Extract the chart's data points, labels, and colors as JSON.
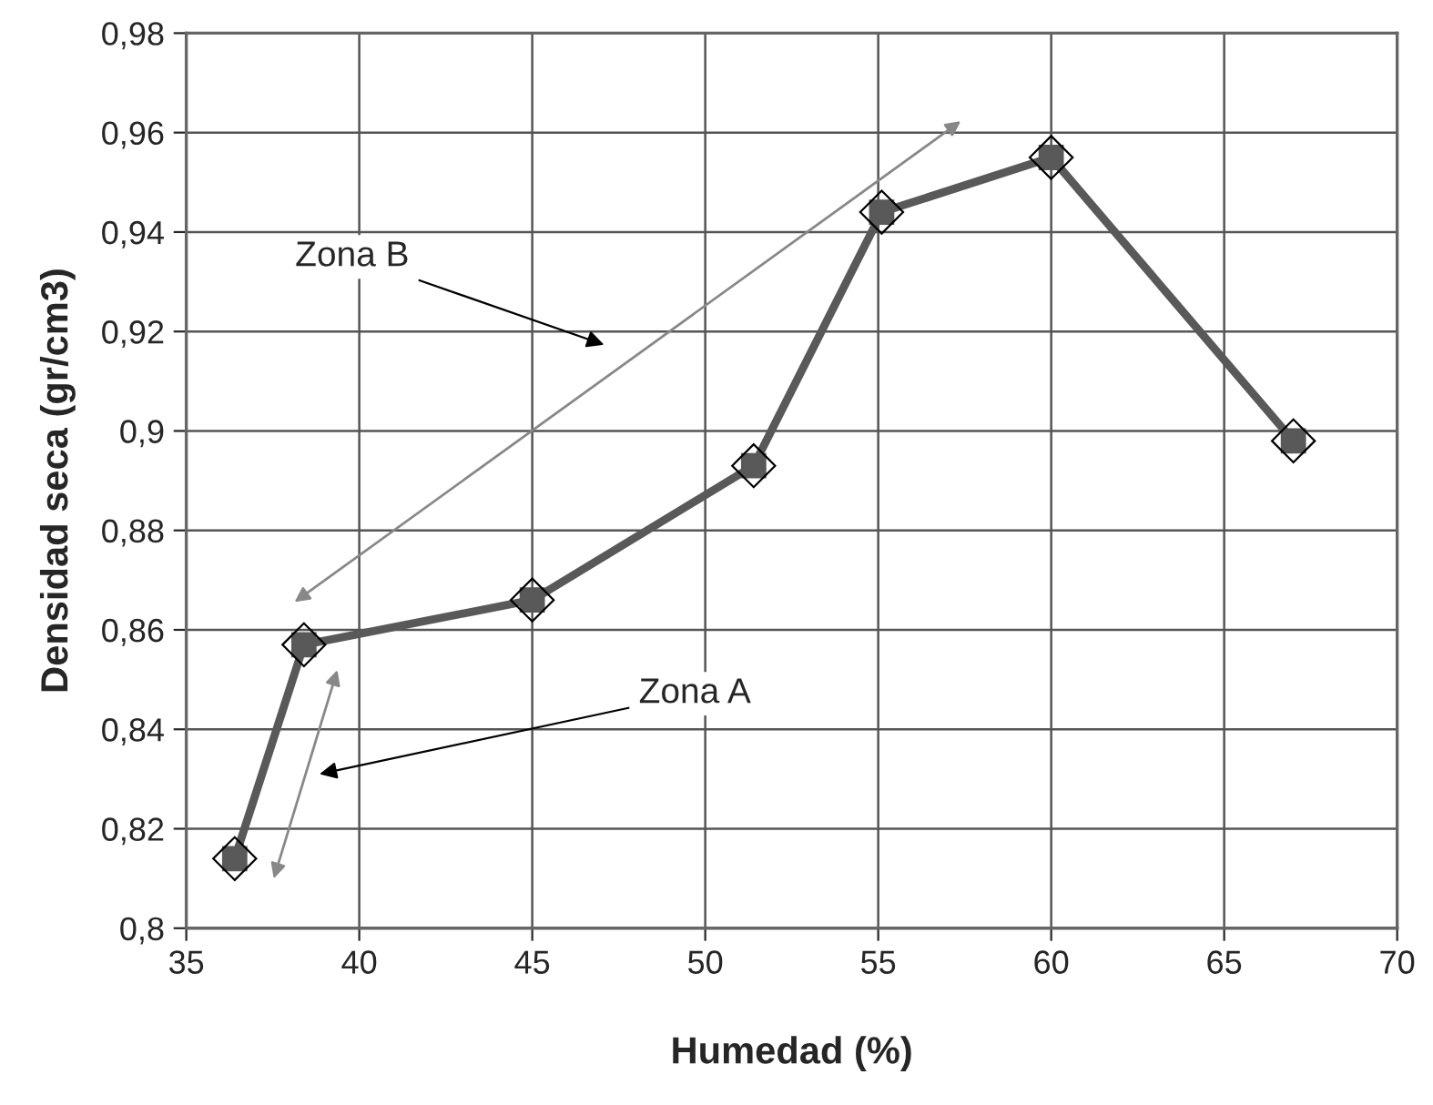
{
  "chart_data": {
    "type": "line",
    "xlabel": "Humedad (%)",
    "ylabel": "Densidad seca (gr/cm3)",
    "series": [
      {
        "color": "#595959",
        "x": [
          36.4,
          38.4,
          45.0,
          51.4,
          55.1,
          60.0,
          67.0
        ],
        "values": [
          0.814,
          0.857,
          0.866,
          0.893,
          0.944,
          0.955,
          0.898
        ]
      }
    ],
    "xlim": [
      35,
      70
    ],
    "xticks": [
      35,
      40,
      45,
      50,
      55,
      60,
      65,
      70
    ],
    "ylim": [
      0.8,
      0.98
    ],
    "yticks": [
      {
        "value": 0.8,
        "label": "0,8"
      },
      {
        "value": 0.82,
        "label": "0,82"
      },
      {
        "value": 0.84,
        "label": "0,84"
      },
      {
        "value": 0.86,
        "label": "0,86"
      },
      {
        "value": 0.88,
        "label": "0,88"
      },
      {
        "value": 0.9,
        "label": "0,9"
      },
      {
        "value": 0.92,
        "label": "0,92"
      },
      {
        "value": 0.94,
        "label": "0,94"
      },
      {
        "value": 0.96,
        "label": "0,96"
      },
      {
        "value": 0.98,
        "label": "0,98"
      }
    ],
    "annotations": [
      "Zona B",
      "Zona A"
    ],
    "grid": true,
    "marker": "square",
    "line_style": "solid"
  }
}
